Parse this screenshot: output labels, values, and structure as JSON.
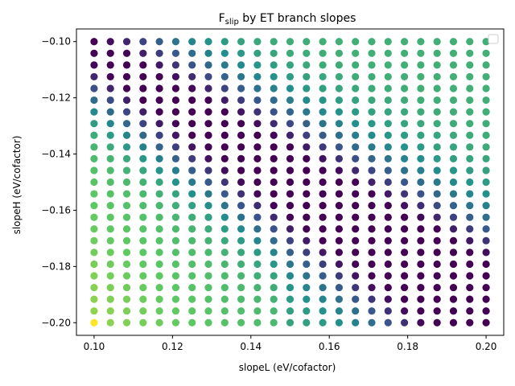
{
  "chart_data": {
    "type": "scatter",
    "title_main": "F",
    "title_sub": "slip",
    "title_rest": " by ET branch slopes",
    "xlabel": "slopeL (eV/cofactor)",
    "ylabel": "slopeH (eV/cofactor)",
    "xlim": [
      0.0955,
      0.2045
    ],
    "ylim": [
      -0.2045,
      -0.0955
    ],
    "xticks": [
      0.1,
      0.12,
      0.14,
      0.16,
      0.18,
      0.2
    ],
    "xtick_labels": [
      "0.10",
      "0.12",
      "0.14",
      "0.16",
      "0.18",
      "0.20"
    ],
    "yticks": [
      -0.2,
      -0.18,
      -0.16,
      -0.14,
      -0.12,
      -0.1
    ],
    "ytick_labels": [
      "−0.20",
      "−0.18",
      "−0.16",
      "−0.14",
      "−0.12",
      "−0.10"
    ],
    "grid": false,
    "legend": "top-right (empty)",
    "colormap": "viridis",
    "grid_x": {
      "start": 0.1,
      "stop": 0.2,
      "count": 25
    },
    "grid_y": {
      "start": -0.2,
      "stop": -0.1,
      "count": 25
    },
    "color_model": "values read from colors; slip ridge near slopeL ~ -slopeH",
    "colors": {
      "axis": "#000000",
      "background": "#ffffff",
      "viridis_stops": [
        "#440154",
        "#3b528b",
        "#21908d",
        "#5dc963",
        "#fde725"
      ]
    }
  }
}
